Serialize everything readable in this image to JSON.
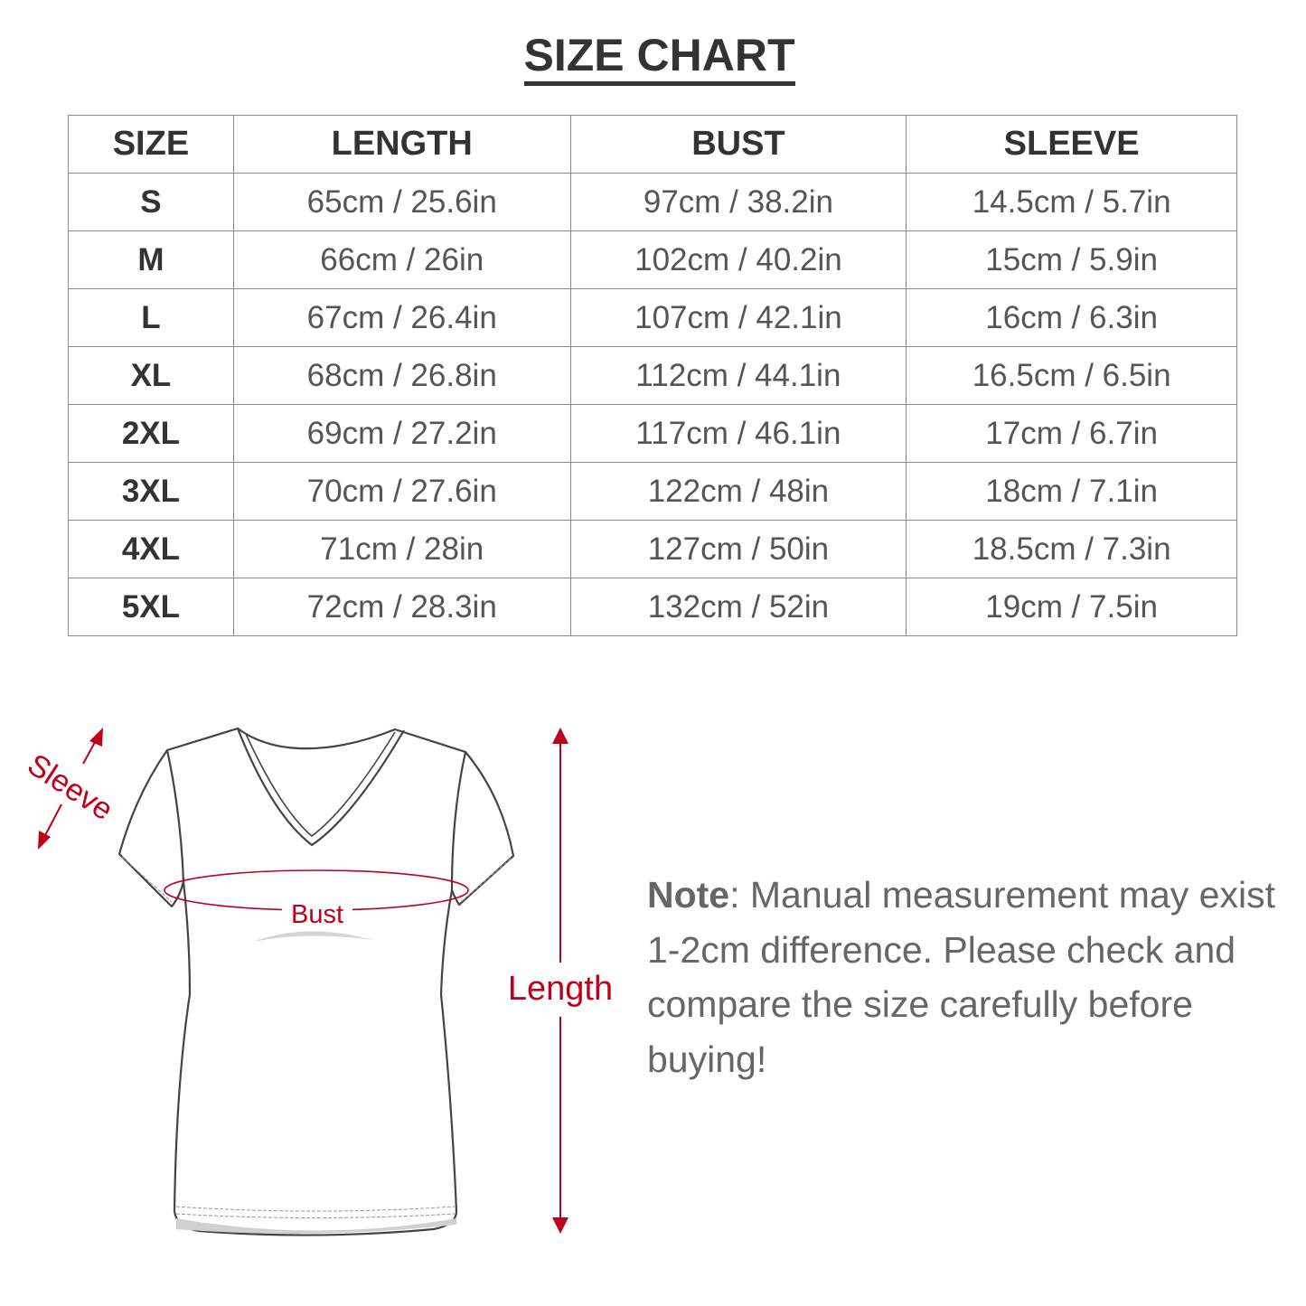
{
  "title": "SIZE CHART",
  "table": {
    "headers": [
      "SIZE",
      "LENGTH",
      "BUST",
      "SLEEVE"
    ],
    "rows": [
      [
        "S",
        "65cm / 25.6in",
        "97cm / 38.2in",
        "14.5cm / 5.7in"
      ],
      [
        "M",
        "66cm / 26in",
        "102cm / 40.2in",
        "15cm / 5.9in"
      ],
      [
        "L",
        "67cm / 26.4in",
        "107cm / 42.1in",
        "16cm / 6.3in"
      ],
      [
        "XL",
        "68cm / 26.8in",
        "112cm / 44.1in",
        "16.5cm / 6.5in"
      ],
      [
        "2XL",
        "69cm / 27.2in",
        "117cm / 46.1in",
        "17cm / 6.7in"
      ],
      [
        "3XL",
        "70cm / 27.6in",
        "122cm / 48in",
        "18cm / 7.1in"
      ],
      [
        "4XL",
        "71cm / 28in",
        "127cm / 50in",
        "18.5cm / 7.3in"
      ],
      [
        "5XL",
        "72cm / 28.3in",
        "132cm / 52in",
        "19cm / 7.5in"
      ]
    ]
  },
  "diagram": {
    "sleeve_label": "Sleeve",
    "bust_label": "Bust",
    "length_label": "Length",
    "accent_color": "#c0001a"
  },
  "note": {
    "label": "Note",
    "text": ": Manual measurement may exist 1-2cm difference. Please check and compare the size carefully before buying!"
  }
}
